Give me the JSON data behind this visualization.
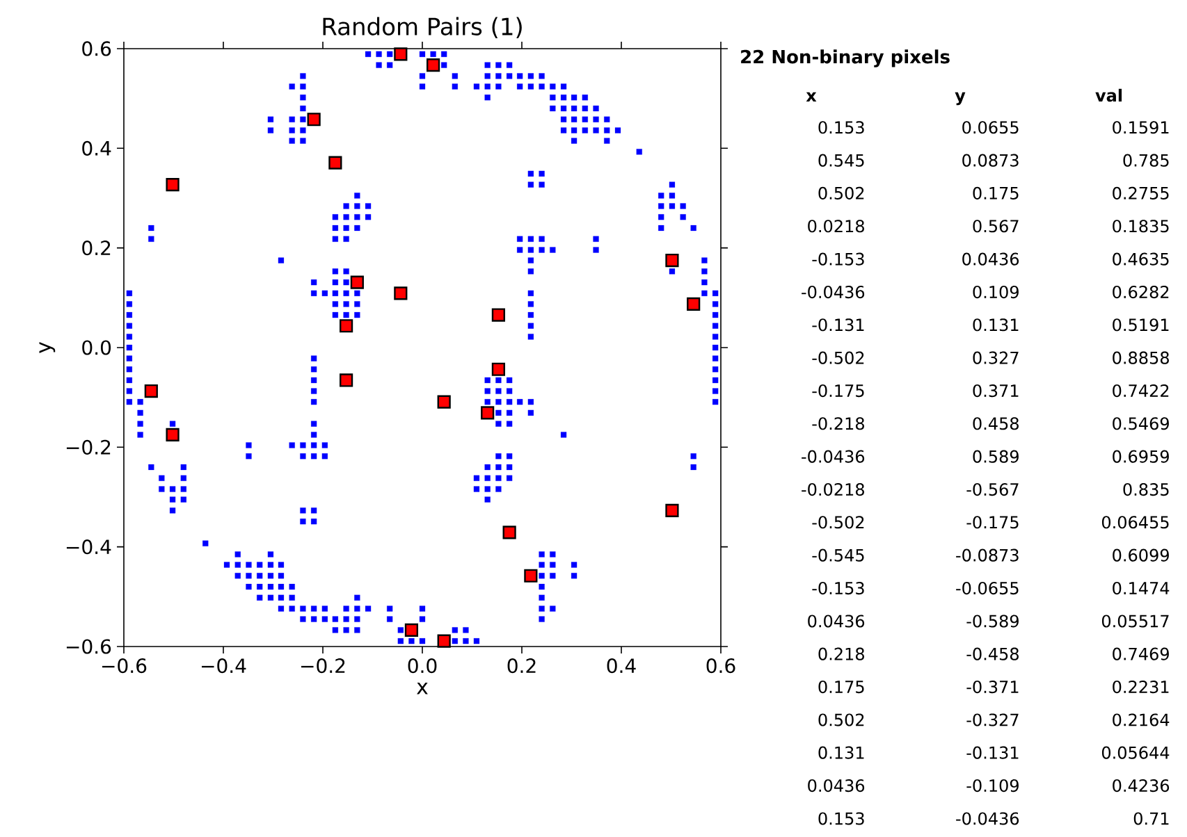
{
  "chart_data": [
    {
      "type": "scatter",
      "title": "Random Pairs (1)",
      "xlabel": "x",
      "ylabel": "y",
      "xlim": [
        -0.6,
        0.6
      ],
      "ylim": [
        -0.6,
        0.6
      ],
      "xticks": [
        {
          "value": -0.6,
          "label": "−0.6"
        },
        {
          "value": -0.4,
          "label": "−0.4"
        },
        {
          "value": -0.2,
          "label": "−0.2"
        },
        {
          "value": 0,
          "label": "0.0"
        },
        {
          "value": 0.2,
          "label": "0.2"
        },
        {
          "value": 0.4,
          "label": "0.4"
        },
        {
          "value": 0.6,
          "label": "0.6"
        }
      ],
      "yticks": [
        {
          "value": -0.6,
          "label": "−0.6"
        },
        {
          "value": -0.4,
          "label": "−0.4"
        },
        {
          "value": -0.2,
          "label": "−0.2"
        },
        {
          "value": 0,
          "label": "0.0"
        },
        {
          "value": 0.2,
          "label": "0.2"
        },
        {
          "value": 0.4,
          "label": "0.4"
        },
        {
          "value": 0.6,
          "label": "0.6"
        }
      ],
      "marker": "square",
      "series": [
        {
          "color": "#0000ff",
          "x": [
            -0.109,
            -0.0873,
            -0.0655,
            0,
            0.0218,
            0.0436,
            -0.0873,
            -0.0655,
            0.0436,
            0.131,
            0.153,
            0.175,
            -0.24,
            0,
            0.0655,
            0.131,
            0.153,
            0.175,
            0.196,
            0.218,
            0.24,
            -0.262,
            -0.24,
            0,
            0.0655,
            0.109,
            0.131,
            0.153,
            0.196,
            0.218,
            0.24,
            0.262,
            0.284,
            -0.24,
            0.131,
            0.262,
            0.284,
            0.305,
            0.327,
            -0.24,
            0.262,
            0.284,
            0.305,
            0.327,
            0.349,
            -0.305,
            -0.262,
            -0.24,
            0.284,
            0.305,
            0.327,
            0.349,
            0.371,
            -0.305,
            -0.262,
            -0.24,
            0.284,
            0.305,
            0.327,
            0.349,
            0.371,
            0.393,
            -0.262,
            -0.24,
            0.305,
            0.371,
            0.436,
            0.218,
            0.24,
            0.218,
            0.24,
            0.502,
            -0.131,
            0.48,
            0.502,
            -0.153,
            -0.131,
            -0.109,
            0.48,
            0.502,
            0.524,
            -0.175,
            -0.153,
            -0.131,
            -0.109,
            0.48,
            0.524,
            -0.545,
            -0.175,
            -0.153,
            -0.131,
            0.48,
            0.545,
            -0.545,
            -0.175,
            -0.153,
            0.196,
            0.218,
            0.24,
            0.349,
            0.196,
            0.218,
            0.24,
            0.262,
            0.349,
            -0.284,
            0.218,
            0.567,
            -0.175,
            -0.153,
            0.218,
            0.502,
            0.567,
            -0.218,
            -0.175,
            -0.153,
            0.567,
            -0.589,
            -0.218,
            -0.196,
            -0.175,
            -0.153,
            -0.131,
            0.218,
            0.567,
            0.589,
            -0.589,
            -0.175,
            -0.153,
            -0.131,
            0.218,
            0.589,
            -0.589,
            -0.175,
            -0.153,
            -0.131,
            0.218,
            0.589,
            -0.589,
            0.218,
            0.589,
            -0.589,
            0.218,
            0.589,
            -0.589,
            0.589,
            -0.589,
            -0.218,
            0.589,
            -0.589,
            -0.218,
            0.589,
            -0.589,
            -0.218,
            0.131,
            0.153,
            0.175,
            0.589,
            -0.589,
            -0.218,
            0.131,
            0.153,
            0.175,
            0.589,
            -0.589,
            -0.567,
            -0.218,
            0.131,
            0.153,
            0.175,
            0.196,
            0.218,
            0.589,
            -0.567,
            0.153,
            0.175,
            0.218,
            -0.567,
            -0.502,
            -0.218,
            0.153,
            0.175,
            -0.567,
            -0.218,
            0.284,
            -0.349,
            -0.262,
            -0.24,
            -0.218,
            -0.196,
            -0.349,
            -0.24,
            -0.218,
            -0.196,
            0.153,
            0.175,
            0.545,
            -0.545,
            -0.48,
            0.131,
            0.153,
            0.175,
            0.545,
            -0.524,
            -0.48,
            0.109,
            0.131,
            0.153,
            0.175,
            -0.524,
            -0.502,
            -0.48,
            0.109,
            0.131,
            0.153,
            -0.502,
            -0.48,
            0.131,
            -0.502,
            -0.24,
            -0.218,
            -0.24,
            -0.218,
            -0.436,
            -0.371,
            -0.305,
            0.24,
            0.262,
            -0.393,
            -0.371,
            -0.349,
            -0.327,
            -0.305,
            -0.284,
            0.24,
            0.262,
            0.305,
            -0.371,
            -0.349,
            -0.327,
            -0.305,
            -0.284,
            0.24,
            0.262,
            0.305,
            -0.349,
            -0.327,
            -0.305,
            -0.284,
            -0.262,
            0.24,
            -0.327,
            -0.305,
            -0.284,
            -0.262,
            -0.131,
            0.24,
            -0.284,
            -0.262,
            -0.24,
            -0.218,
            -0.196,
            -0.153,
            -0.131,
            -0.109,
            -0.0655,
            0,
            0.24,
            0.262,
            -0.24,
            -0.218,
            -0.196,
            -0.175,
            -0.153,
            -0.131,
            -0.0655,
            0,
            0.24,
            -0.175,
            -0.153,
            -0.131,
            -0.0436,
            0.0655,
            0.0873,
            -0.0436,
            -0.0218,
            0,
            0.0655,
            0.0873,
            0.109
          ],
          "values": [
            0.589,
            0.589,
            0.589,
            0.589,
            0.589,
            0.589,
            0.567,
            0.567,
            0.567,
            0.567,
            0.567,
            0.567,
            0.545,
            0.545,
            0.545,
            0.545,
            0.545,
            0.545,
            0.545,
            0.545,
            0.545,
            0.524,
            0.524,
            0.524,
            0.524,
            0.524,
            0.524,
            0.524,
            0.524,
            0.524,
            0.524,
            0.524,
            0.524,
            0.502,
            0.502,
            0.502,
            0.502,
            0.502,
            0.502,
            0.48,
            0.48,
            0.48,
            0.48,
            0.48,
            0.48,
            0.458,
            0.458,
            0.458,
            0.458,
            0.458,
            0.458,
            0.458,
            0.458,
            0.436,
            0.436,
            0.436,
            0.436,
            0.436,
            0.436,
            0.436,
            0.436,
            0.436,
            0.415,
            0.415,
            0.415,
            0.415,
            0.393,
            0.349,
            0.349,
            0.327,
            0.327,
            0.327,
            0.305,
            0.305,
            0.305,
            0.284,
            0.284,
            0.284,
            0.284,
            0.284,
            0.284,
            0.262,
            0.262,
            0.262,
            0.262,
            0.262,
            0.262,
            0.24,
            0.24,
            0.24,
            0.24,
            0.24,
            0.24,
            0.218,
            0.218,
            0.218,
            0.218,
            0.218,
            0.218,
            0.218,
            0.196,
            0.196,
            0.196,
            0.196,
            0.196,
            0.175,
            0.175,
            0.175,
            0.153,
            0.153,
            0.153,
            0.153,
            0.153,
            0.131,
            0.131,
            0.131,
            0.131,
            0.109,
            0.109,
            0.109,
            0.109,
            0.109,
            0.109,
            0.109,
            0.109,
            0.109,
            0.0873,
            0.0873,
            0.0873,
            0.0873,
            0.0873,
            0.0873,
            0.0655,
            0.0655,
            0.0655,
            0.0655,
            0.0655,
            0.0655,
            0.0436,
            0.0436,
            0.0436,
            0.0218,
            0.0218,
            0.0218,
            0,
            0,
            -0.0218,
            -0.0218,
            -0.0218,
            -0.0436,
            -0.0436,
            -0.0436,
            -0.0655,
            -0.0655,
            -0.0655,
            -0.0655,
            -0.0655,
            -0.0655,
            -0.0873,
            -0.0873,
            -0.0873,
            -0.0873,
            -0.0873,
            -0.0873,
            -0.109,
            -0.109,
            -0.109,
            -0.109,
            -0.109,
            -0.109,
            -0.109,
            -0.109,
            -0.109,
            -0.131,
            -0.131,
            -0.131,
            -0.131,
            -0.153,
            -0.153,
            -0.153,
            -0.153,
            -0.153,
            -0.175,
            -0.175,
            -0.175,
            -0.196,
            -0.196,
            -0.196,
            -0.196,
            -0.196,
            -0.218,
            -0.218,
            -0.218,
            -0.218,
            -0.218,
            -0.218,
            -0.218,
            -0.24,
            -0.24,
            -0.24,
            -0.24,
            -0.24,
            -0.24,
            -0.262,
            -0.262,
            -0.262,
            -0.262,
            -0.262,
            -0.262,
            -0.284,
            -0.284,
            -0.284,
            -0.284,
            -0.284,
            -0.284,
            -0.305,
            -0.305,
            -0.305,
            -0.327,
            -0.327,
            -0.327,
            -0.349,
            -0.349,
            -0.393,
            -0.415,
            -0.415,
            -0.415,
            -0.415,
            -0.436,
            -0.436,
            -0.436,
            -0.436,
            -0.436,
            -0.436,
            -0.436,
            -0.436,
            -0.436,
            -0.458,
            -0.458,
            -0.458,
            -0.458,
            -0.458,
            -0.458,
            -0.458,
            -0.458,
            -0.48,
            -0.48,
            -0.48,
            -0.48,
            -0.48,
            -0.48,
            -0.502,
            -0.502,
            -0.502,
            -0.502,
            -0.502,
            -0.502,
            -0.524,
            -0.524,
            -0.524,
            -0.524,
            -0.524,
            -0.524,
            -0.524,
            -0.524,
            -0.524,
            -0.524,
            -0.524,
            -0.524,
            -0.545,
            -0.545,
            -0.545,
            -0.545,
            -0.545,
            -0.545,
            -0.545,
            -0.545,
            -0.545,
            -0.567,
            -0.567,
            -0.567,
            -0.567,
            -0.567,
            -0.567,
            -0.589,
            -0.589,
            -0.589,
            -0.589,
            -0.589,
            -0.589
          ]
        },
        {
          "color": "#ff0000",
          "x": [
            0.153,
            0.545,
            0.502,
            0.0218,
            -0.153,
            -0.0436,
            -0.131,
            -0.502,
            -0.175,
            -0.218,
            -0.0436,
            -0.0218,
            -0.502,
            -0.545,
            -0.153,
            0.0436,
            0.218,
            0.175,
            0.502,
            0.131,
            0.0436,
            0.153
          ],
          "values": [
            0.0655,
            0.0873,
            0.175,
            0.567,
            0.0436,
            0.109,
            0.131,
            0.327,
            0.371,
            0.458,
            0.589,
            -0.567,
            -0.175,
            -0.0873,
            -0.0655,
            -0.589,
            -0.458,
            -0.371,
            -0.327,
            -0.131,
            -0.109,
            -0.0436
          ]
        }
      ]
    },
    {
      "type": "other",
      "title": "22 Non-binary pixels",
      "annotations": [
        "x",
        "y",
        "val",
        "0.153",
        "0.0655",
        "0.1591",
        "0.545",
        "0.0873",
        "0.785",
        "0.502",
        "0.175",
        "0.2755",
        "0.0218",
        "0.567",
        "0.1835",
        "-0.153",
        "0.0436",
        "0.4635",
        "-0.0436",
        "0.109",
        "0.6282",
        "-0.131",
        "0.131",
        "0.5191",
        "-0.502",
        "0.327",
        "0.8858",
        "-0.175",
        "0.371",
        "0.7422",
        "-0.218",
        "0.458",
        "0.5469",
        "-0.0436",
        "0.589",
        "0.6959",
        "-0.0218",
        "-0.567",
        "0.835",
        "-0.502",
        "-0.175",
        "0.06455",
        "-0.545",
        "-0.0873",
        "0.6099",
        "-0.153",
        "-0.0655",
        "0.1474",
        "0.0436",
        "-0.589",
        "0.05517",
        "0.218",
        "-0.458",
        "0.7469",
        "0.175",
        "-0.371",
        "0.2231",
        "0.502",
        "-0.327",
        "0.2164",
        "0.131",
        "-0.131",
        "0.05644",
        "0.0436",
        "-0.109",
        "0.4236",
        "0.153",
        "-0.0436",
        "0.71"
      ]
    }
  ]
}
